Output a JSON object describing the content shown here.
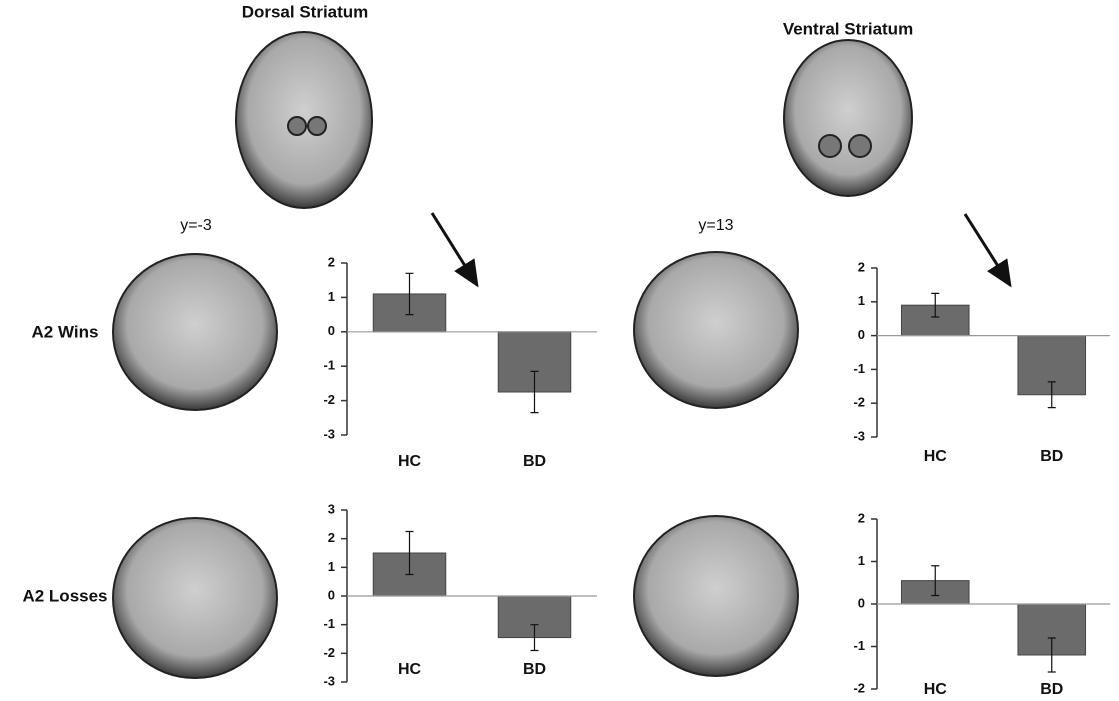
{
  "figure": {
    "panel_titles": [
      "Dorsal Striatum",
      "Ventral Striatum"
    ],
    "slice_labels": [
      "y=-3",
      "y=13"
    ],
    "row_labels": [
      "A2 Wins",
      "A2 Losses"
    ]
  },
  "chart_data": [
    {
      "type": "bar",
      "categories": [
        "HC",
        "BD"
      ],
      "values": [
        1.1,
        -1.75
      ],
      "errors": [
        0.6,
        0.6
      ],
      "color": "#6b6b6b",
      "ylim": [
        -3,
        2
      ],
      "yticks": [
        -3,
        -2,
        -1,
        0,
        1,
        2
      ]
    },
    {
      "type": "bar",
      "categories": [
        "HC",
        "BD"
      ],
      "values": [
        0.9,
        -1.75
      ],
      "errors": [
        0.35,
        0.38
      ],
      "color": "#6b6b6b",
      "ylim": [
        -3,
        2
      ],
      "yticks": [
        -3,
        -2,
        -1,
        0,
        1,
        2
      ]
    },
    {
      "type": "bar",
      "categories": [
        "HC",
        "BD"
      ],
      "values": [
        1.5,
        -1.45
      ],
      "errors": [
        0.75,
        0.45
      ],
      "color": "#6b6b6b",
      "ylim": [
        -3,
        3
      ],
      "yticks": [
        -3,
        -2,
        -1,
        0,
        1,
        2,
        3
      ]
    },
    {
      "type": "bar",
      "categories": [
        "HC",
        "BD"
      ],
      "values": [
        0.55,
        -1.2
      ],
      "errors": [
        0.35,
        0.4
      ],
      "color": "#6b6b6b",
      "ylim": [
        -2,
        2
      ],
      "yticks": [
        -2,
        -1,
        0,
        1,
        2
      ]
    }
  ]
}
